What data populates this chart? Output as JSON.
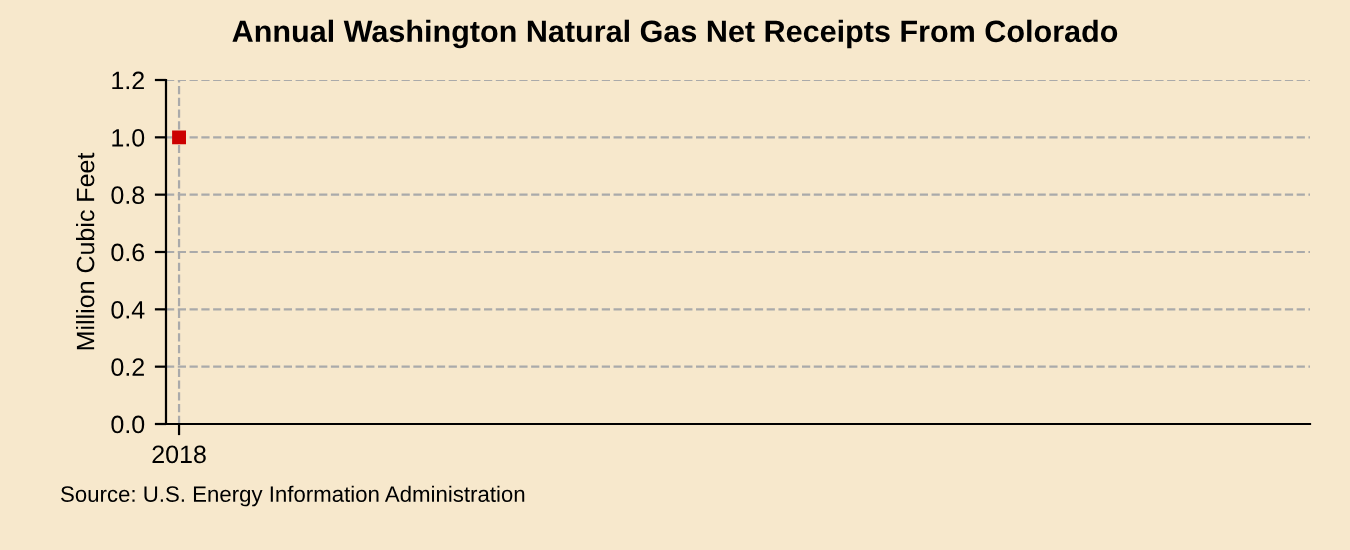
{
  "chart_data": {
    "type": "line",
    "title": "Annual Washington Natural Gas Net Receipts From Colorado",
    "ylabel": "Million Cubic Feet",
    "categories": [
      "2018"
    ],
    "series": [
      {
        "color": "#cc0000",
        "values": [
          1.0
        ]
      }
    ],
    "ylim": [
      0,
      1.2
    ],
    "yticks": [
      {
        "value": 0,
        "label": "0.0"
      },
      {
        "value": 0.2,
        "label": "0.2"
      },
      {
        "value": 0.4,
        "label": "0.4"
      },
      {
        "value": 0.6,
        "label": "0.6"
      },
      {
        "value": 0.8,
        "label": "0.8"
      },
      {
        "value": 1.0,
        "label": "1.0"
      },
      {
        "value": 1.2,
        "label": "1.2"
      }
    ],
    "grid": true,
    "marker": "square",
    "annotations": [
      "Source: U.S. Energy Information Administration"
    ]
  }
}
